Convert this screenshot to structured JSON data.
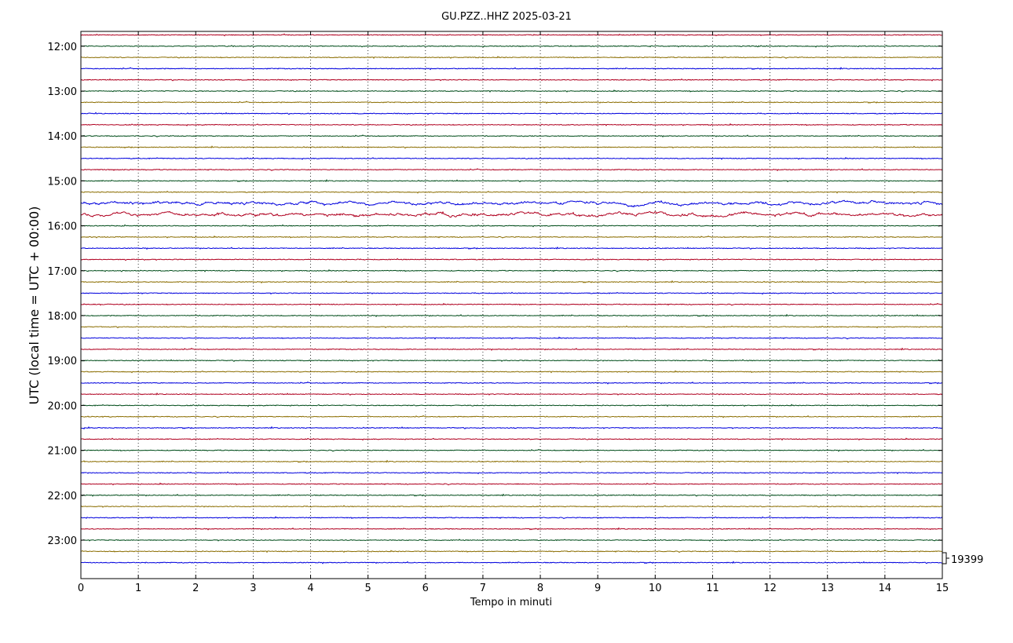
{
  "chart_data": {
    "type": "line",
    "title": "GU.PZZ..HHZ 2025-03-21",
    "xlabel": "Tempo in minuti",
    "ylabel": "UTC (local time = UTC + 00:00)",
    "xlim": [
      0,
      15
    ],
    "x_ticks": [
      "0",
      "1",
      "2",
      "3",
      "4",
      "5",
      "6",
      "7",
      "8",
      "9",
      "10",
      "11",
      "12",
      "13",
      "14",
      "15"
    ],
    "y_ticks": [
      "12:00",
      "13:00",
      "14:00",
      "15:00",
      "16:00",
      "17:00",
      "18:00",
      "19:00",
      "20:00",
      "21:00",
      "22:00",
      "23:00"
    ],
    "grid_x": "dotted",
    "trace_start": "11:45",
    "trace_interval_minutes": 15,
    "trace_count": 48,
    "trace_colors": [
      "#b00020",
      "#004d1a",
      "#8b6d00",
      "#0000dd"
    ],
    "scale_label": "19399",
    "enhanced_noise_traces": [
      "15:30",
      "15:45"
    ]
  }
}
